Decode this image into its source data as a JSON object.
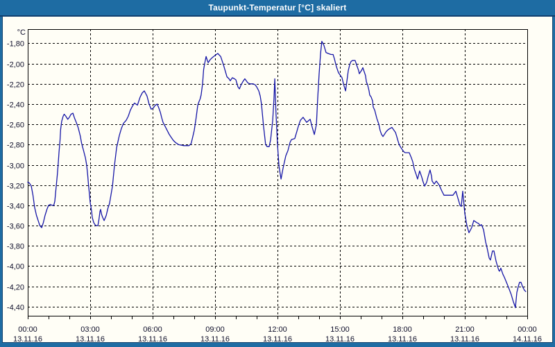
{
  "window": {
    "title": "Taupunkt-Temperatur [°C] skaliert"
  },
  "colors": {
    "titlebar": "#1e6ca3",
    "frame": "#1e6ca3",
    "frame_line": "#16456f",
    "background": "#fffef6",
    "line": "#1414a6",
    "grid": "#000000",
    "axis_text": "#0c0c28"
  },
  "chart_data": {
    "type": "line",
    "title": "Taupunkt-Temperatur [°C] skaliert",
    "unit_label": "°C",
    "ylabel": "°C",
    "xlabel": "",
    "legend": "none",
    "grid": "dashed black, horizontal every 0.2 °C, vertical every 3 h",
    "xlim_hours": [
      0,
      24
    ],
    "ylim": [
      -4.49,
      -1.66
    ],
    "x_minor_tick_hours": 1,
    "y_ticks": [
      {
        "value": -1.8,
        "label": "-1,80"
      },
      {
        "value": -2.0,
        "label": "-2,00"
      },
      {
        "value": -2.2,
        "label": "-2,20"
      },
      {
        "value": -2.4,
        "label": "-2,40"
      },
      {
        "value": -2.6,
        "label": "-2,60"
      },
      {
        "value": -2.8,
        "label": "-2,80"
      },
      {
        "value": -3.0,
        "label": "-3,00"
      },
      {
        "value": -3.2,
        "label": "-3,20"
      },
      {
        "value": -3.4,
        "label": "-3,40"
      },
      {
        "value": -3.6,
        "label": "-3,60"
      },
      {
        "value": -3.8,
        "label": "-3,80"
      },
      {
        "value": -4.0,
        "label": "-4,00"
      },
      {
        "value": -4.2,
        "label": "-4,20"
      },
      {
        "value": -4.4,
        "label": "-4,40"
      }
    ],
    "x_ticks": [
      {
        "hour": 0,
        "time": "00:00",
        "date": "13.11.16"
      },
      {
        "hour": 3,
        "time": "03:00",
        "date": "13.11.16"
      },
      {
        "hour": 6,
        "time": "06:00",
        "date": "13.11.16"
      },
      {
        "hour": 9,
        "time": "09:00",
        "date": "13.11.16"
      },
      {
        "hour": 12,
        "time": "12:00",
        "date": "13.11.16"
      },
      {
        "hour": 15,
        "time": "15:00",
        "date": "13.11.16"
      },
      {
        "hour": 18,
        "time": "18:00",
        "date": "13.11.16"
      },
      {
        "hour": 21,
        "time": "21:00",
        "date": "13.11.16"
      },
      {
        "hour": 24,
        "time": "00:00",
        "date": "14.11.16"
      }
    ],
    "series": [
      {
        "name": "Taupunkt-Temperatur",
        "points": [
          [
            0.0,
            -3.17
          ],
          [
            0.08,
            -3.18
          ],
          [
            0.17,
            -3.21
          ],
          [
            0.25,
            -3.3
          ],
          [
            0.33,
            -3.42
          ],
          [
            0.42,
            -3.5
          ],
          [
            0.5,
            -3.55
          ],
          [
            0.58,
            -3.6
          ],
          [
            0.67,
            -3.62
          ],
          [
            0.75,
            -3.57
          ],
          [
            0.83,
            -3.5
          ],
          [
            0.92,
            -3.44
          ],
          [
            1.0,
            -3.4
          ],
          [
            1.08,
            -3.39
          ],
          [
            1.17,
            -3.4
          ],
          [
            1.25,
            -3.4
          ],
          [
            1.3,
            -3.36
          ],
          [
            1.35,
            -3.25
          ],
          [
            1.42,
            -3.1
          ],
          [
            1.46,
            -3.0
          ],
          [
            1.5,
            -2.88
          ],
          [
            1.55,
            -2.76
          ],
          [
            1.58,
            -2.65
          ],
          [
            1.63,
            -2.57
          ],
          [
            1.7,
            -2.52
          ],
          [
            1.75,
            -2.5
          ],
          [
            1.83,
            -2.52
          ],
          [
            1.92,
            -2.55
          ],
          [
            2.0,
            -2.53
          ],
          [
            2.08,
            -2.5
          ],
          [
            2.17,
            -2.49
          ],
          [
            2.25,
            -2.54
          ],
          [
            2.33,
            -2.58
          ],
          [
            2.42,
            -2.63
          ],
          [
            2.47,
            -2.67
          ],
          [
            2.53,
            -2.72
          ],
          [
            2.58,
            -2.78
          ],
          [
            2.63,
            -2.82
          ],
          [
            2.67,
            -2.85
          ],
          [
            2.72,
            -2.89
          ],
          [
            2.77,
            -2.93
          ],
          [
            2.83,
            -3.0
          ],
          [
            2.88,
            -3.1
          ],
          [
            2.92,
            -3.2
          ],
          [
            2.97,
            -3.3
          ],
          [
            3.0,
            -3.37
          ],
          [
            3.07,
            -3.46
          ],
          [
            3.1,
            -3.52
          ],
          [
            3.17,
            -3.57
          ],
          [
            3.23,
            -3.59
          ],
          [
            3.28,
            -3.6
          ],
          [
            3.37,
            -3.6
          ],
          [
            3.42,
            -3.54
          ],
          [
            3.47,
            -3.46
          ],
          [
            3.5,
            -3.44
          ],
          [
            3.55,
            -3.49
          ],
          [
            3.6,
            -3.52
          ],
          [
            3.67,
            -3.55
          ],
          [
            3.77,
            -3.5
          ],
          [
            3.85,
            -3.43
          ],
          [
            3.93,
            -3.38
          ],
          [
            4.07,
            -3.21
          ],
          [
            4.17,
            -3.0
          ],
          [
            4.27,
            -2.83
          ],
          [
            4.4,
            -2.71
          ],
          [
            4.5,
            -2.64
          ],
          [
            4.6,
            -2.59
          ],
          [
            4.73,
            -2.56
          ],
          [
            4.83,
            -2.52
          ],
          [
            4.93,
            -2.46
          ],
          [
            5.03,
            -2.42
          ],
          [
            5.13,
            -2.39
          ],
          [
            5.27,
            -2.41
          ],
          [
            5.4,
            -2.33
          ],
          [
            5.5,
            -2.29
          ],
          [
            5.6,
            -2.27
          ],
          [
            5.73,
            -2.32
          ],
          [
            5.83,
            -2.4
          ],
          [
            5.93,
            -2.45
          ],
          [
            6.03,
            -2.44
          ],
          [
            6.13,
            -2.41
          ],
          [
            6.22,
            -2.4
          ],
          [
            6.3,
            -2.44
          ],
          [
            6.37,
            -2.48
          ],
          [
            6.43,
            -2.53
          ],
          [
            6.5,
            -2.58
          ],
          [
            6.6,
            -2.62
          ],
          [
            6.7,
            -2.66
          ],
          [
            6.8,
            -2.7
          ],
          [
            6.9,
            -2.73
          ],
          [
            7.0,
            -2.76
          ],
          [
            7.1,
            -2.78
          ],
          [
            7.25,
            -2.8
          ],
          [
            7.5,
            -2.81
          ],
          [
            7.75,
            -2.81
          ],
          [
            7.85,
            -2.79
          ],
          [
            7.92,
            -2.73
          ],
          [
            8.0,
            -2.66
          ],
          [
            8.08,
            -2.55
          ],
          [
            8.17,
            -2.41
          ],
          [
            8.22,
            -2.38
          ],
          [
            8.28,
            -2.35
          ],
          [
            8.33,
            -2.31
          ],
          [
            8.4,
            -2.2
          ],
          [
            8.45,
            -2.06
          ],
          [
            8.5,
            -2.0
          ],
          [
            8.57,
            -1.93
          ],
          [
            8.63,
            -1.97
          ],
          [
            8.67,
            -1.99
          ],
          [
            8.77,
            -1.96
          ],
          [
            8.87,
            -1.94
          ],
          [
            9.0,
            -1.92
          ],
          [
            9.13,
            -1.9
          ],
          [
            9.27,
            -1.93
          ],
          [
            9.4,
            -2.01
          ],
          [
            9.5,
            -2.08
          ],
          [
            9.57,
            -2.13
          ],
          [
            9.67,
            -2.15
          ],
          [
            9.73,
            -2.17
          ],
          [
            9.83,
            -2.14
          ],
          [
            9.93,
            -2.15
          ],
          [
            10.0,
            -2.16
          ],
          [
            10.1,
            -2.23
          ],
          [
            10.17,
            -2.25
          ],
          [
            10.25,
            -2.21
          ],
          [
            10.33,
            -2.18
          ],
          [
            10.43,
            -2.15
          ],
          [
            10.57,
            -2.19
          ],
          [
            10.67,
            -2.2
          ],
          [
            10.83,
            -2.2
          ],
          [
            10.93,
            -2.21
          ],
          [
            11.0,
            -2.23
          ],
          [
            11.1,
            -2.27
          ],
          [
            11.17,
            -2.32
          ],
          [
            11.23,
            -2.4
          ],
          [
            11.33,
            -2.62
          ],
          [
            11.43,
            -2.8
          ],
          [
            11.5,
            -2.82
          ],
          [
            11.6,
            -2.82
          ],
          [
            11.67,
            -2.75
          ],
          [
            11.77,
            -2.56
          ],
          [
            11.83,
            -2.35
          ],
          [
            11.87,
            -2.15
          ],
          [
            11.93,
            -2.5
          ],
          [
            12.0,
            -2.8
          ],
          [
            12.07,
            -3.01
          ],
          [
            12.17,
            -3.14
          ],
          [
            12.27,
            -3.03
          ],
          [
            12.4,
            -2.91
          ],
          [
            12.5,
            -2.86
          ],
          [
            12.6,
            -2.78
          ],
          [
            12.67,
            -2.75
          ],
          [
            12.83,
            -2.74
          ],
          [
            12.93,
            -2.67
          ],
          [
            13.0,
            -2.62
          ],
          [
            13.1,
            -2.56
          ],
          [
            13.23,
            -2.53
          ],
          [
            13.4,
            -2.58
          ],
          [
            13.57,
            -2.55
          ],
          [
            13.67,
            -2.63
          ],
          [
            13.77,
            -2.7
          ],
          [
            13.87,
            -2.6
          ],
          [
            13.93,
            -2.35
          ],
          [
            14.0,
            -2.1
          ],
          [
            14.07,
            -1.9
          ],
          [
            14.13,
            -1.78
          ],
          [
            14.23,
            -1.82
          ],
          [
            14.33,
            -1.89
          ],
          [
            14.43,
            -1.9
          ],
          [
            14.57,
            -1.91
          ],
          [
            14.67,
            -1.91
          ],
          [
            14.73,
            -1.95
          ],
          [
            14.83,
            -2.03
          ],
          [
            14.93,
            -2.09
          ],
          [
            15.0,
            -2.11
          ],
          [
            15.1,
            -2.14
          ],
          [
            15.17,
            -2.2
          ],
          [
            15.27,
            -2.27
          ],
          [
            15.33,
            -2.18
          ],
          [
            15.4,
            -2.07
          ],
          [
            15.47,
            -2.01
          ],
          [
            15.53,
            -1.98
          ],
          [
            15.6,
            -1.97
          ],
          [
            15.73,
            -1.97
          ],
          [
            15.83,
            -2.03
          ],
          [
            15.9,
            -2.07
          ],
          [
            15.93,
            -2.1
          ],
          [
            16.03,
            -2.07
          ],
          [
            16.1,
            -2.04
          ],
          [
            16.23,
            -2.12
          ],
          [
            16.27,
            -2.18
          ],
          [
            16.33,
            -2.21
          ],
          [
            16.4,
            -2.27
          ],
          [
            16.43,
            -2.31
          ],
          [
            16.5,
            -2.33
          ],
          [
            16.57,
            -2.37
          ],
          [
            16.6,
            -2.43
          ],
          [
            16.67,
            -2.46
          ],
          [
            16.77,
            -2.54
          ],
          [
            16.87,
            -2.6
          ],
          [
            16.93,
            -2.66
          ],
          [
            17.0,
            -2.7
          ],
          [
            17.07,
            -2.72
          ],
          [
            17.23,
            -2.67
          ],
          [
            17.33,
            -2.65
          ],
          [
            17.5,
            -2.63
          ],
          [
            17.67,
            -2.68
          ],
          [
            17.73,
            -2.72
          ],
          [
            17.77,
            -2.75
          ],
          [
            17.83,
            -2.79
          ],
          [
            17.9,
            -2.82
          ],
          [
            18.0,
            -2.85
          ],
          [
            18.07,
            -2.87
          ],
          [
            18.13,
            -2.88
          ],
          [
            18.33,
            -2.88
          ],
          [
            18.43,
            -2.93
          ],
          [
            18.5,
            -2.97
          ],
          [
            18.57,
            -3.04
          ],
          [
            18.67,
            -3.1
          ],
          [
            18.73,
            -3.14
          ],
          [
            18.83,
            -3.06
          ],
          [
            18.93,
            -3.12
          ],
          [
            19.0,
            -3.17
          ],
          [
            19.07,
            -3.21
          ],
          [
            19.17,
            -3.17
          ],
          [
            19.23,
            -3.12
          ],
          [
            19.33,
            -3.05
          ],
          [
            19.4,
            -3.11
          ],
          [
            19.43,
            -3.16
          ],
          [
            19.53,
            -3.19
          ],
          [
            19.63,
            -3.16
          ],
          [
            19.77,
            -3.2
          ],
          [
            19.9,
            -3.26
          ],
          [
            20.0,
            -3.3
          ],
          [
            20.43,
            -3.3
          ],
          [
            20.57,
            -3.26
          ],
          [
            20.67,
            -3.33
          ],
          [
            20.77,
            -3.4
          ],
          [
            20.83,
            -3.41
          ],
          [
            20.9,
            -3.26
          ],
          [
            21.0,
            -3.48
          ],
          [
            21.1,
            -3.6
          ],
          [
            21.2,
            -3.67
          ],
          [
            21.33,
            -3.62
          ],
          [
            21.43,
            -3.55
          ],
          [
            21.57,
            -3.57
          ],
          [
            21.67,
            -3.58
          ],
          [
            21.73,
            -3.6
          ],
          [
            21.8,
            -3.59
          ],
          [
            21.9,
            -3.64
          ],
          [
            22.0,
            -3.76
          ],
          [
            22.07,
            -3.82
          ],
          [
            22.17,
            -3.92
          ],
          [
            22.23,
            -3.94
          ],
          [
            22.33,
            -3.85
          ],
          [
            22.4,
            -3.85
          ],
          [
            22.5,
            -3.95
          ],
          [
            22.57,
            -4.0
          ],
          [
            22.63,
            -4.04
          ],
          [
            22.67,
            -4.05
          ],
          [
            22.73,
            -4.02
          ],
          [
            22.83,
            -4.08
          ],
          [
            22.9,
            -4.11
          ],
          [
            23.0,
            -4.16
          ],
          [
            23.1,
            -4.21
          ],
          [
            23.23,
            -4.28
          ],
          [
            23.33,
            -4.35
          ],
          [
            23.4,
            -4.39
          ],
          [
            23.43,
            -4.41
          ],
          [
            23.5,
            -4.26
          ],
          [
            23.57,
            -4.2
          ],
          [
            23.63,
            -4.16
          ],
          [
            23.7,
            -4.16
          ],
          [
            23.77,
            -4.2
          ],
          [
            23.87,
            -4.24
          ],
          [
            23.93,
            -4.25
          ]
        ]
      }
    ]
  }
}
